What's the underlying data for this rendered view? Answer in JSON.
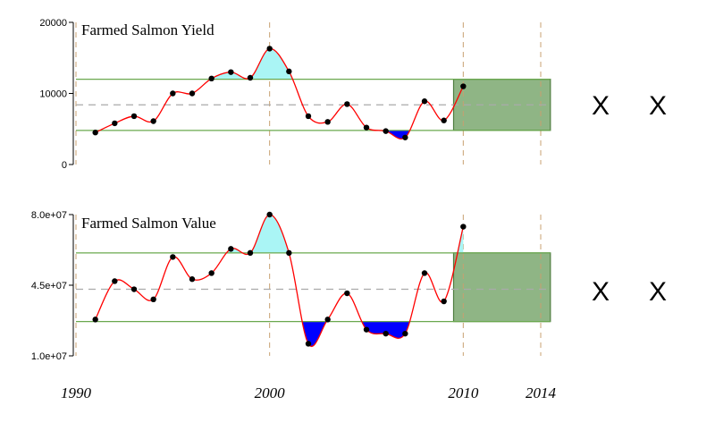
{
  "chart_data": [
    {
      "type": "line",
      "title": "Farmed Salmon Yield",
      "ylim": [
        0,
        20000
      ],
      "yticks": [
        "0",
        "10000",
        "20000"
      ],
      "x": [
        1991,
        1992,
        1993,
        1994,
        1995,
        1996,
        1997,
        1998,
        1999,
        2000,
        2001,
        2002,
        2003,
        2004,
        2005,
        2006,
        2007,
        2008,
        2009,
        2010
      ],
      "values": [
        4500,
        5800,
        6800,
        6100,
        10000,
        10000,
        12100,
        13000,
        12200,
        16300,
        13100,
        6800,
        6000,
        8500,
        5200,
        4700,
        3800,
        8900,
        6200,
        11000
      ],
      "band": {
        "upper": 12000,
        "mean": 8400,
        "lower": 4800
      },
      "forecast_range": [
        2009.5,
        2014.5
      ],
      "markers": [
        "X",
        "X"
      ]
    },
    {
      "type": "line",
      "title": "Farmed Salmon Value",
      "ylim": [
        10000000,
        80000000
      ],
      "yticks": [
        "1.0e+07",
        "4.5e+07",
        "8.0e+07"
      ],
      "x": [
        1991,
        1992,
        1993,
        1994,
        1995,
        1996,
        1997,
        1998,
        1999,
        2000,
        2001,
        2002,
        2003,
        2004,
        2005,
        2006,
        2007,
        2008,
        2009,
        2010
      ],
      "values": [
        28000000,
        47000000,
        43000000,
        38000000,
        59000000,
        48000000,
        51000000,
        63000000,
        61000000,
        80000000,
        61000000,
        16000000,
        28000000,
        41000000,
        23000000,
        21000000,
        21000000,
        51000000,
        37000000,
        74000000
      ],
      "band": {
        "upper": 61000000,
        "mean": 43000000,
        "lower": 27000000
      },
      "forecast_range": [
        2009.5,
        2014.5
      ],
      "markers": [
        "X",
        "X"
      ]
    }
  ],
  "x_axis": {
    "year_labels": [
      "1990",
      "2000",
      "2010",
      "2014"
    ],
    "year_values": [
      1990,
      2000,
      2010,
      2014
    ]
  },
  "colors": {
    "line": "#ff0000",
    "points": "#000000",
    "above_fill": "#aaf5f5",
    "below_fill": "#0000ff",
    "band_line": "#6aa84f",
    "mean_line": "#aaaaaa",
    "forecast_fill": "#8fb585",
    "vline": "#c8a070"
  }
}
